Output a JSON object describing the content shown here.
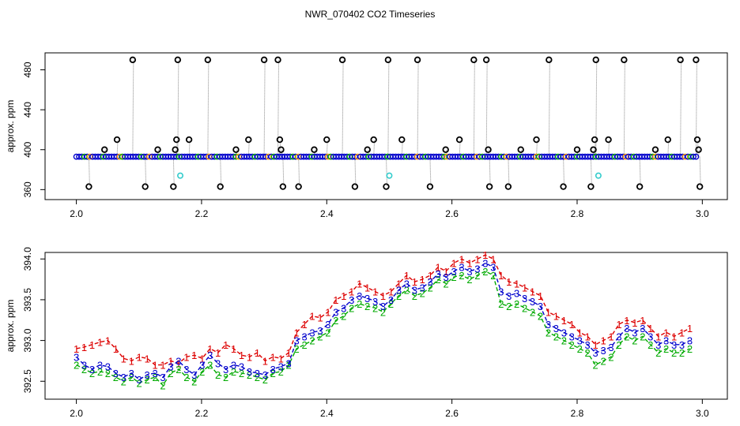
{
  "title": "NWR_070402  CO2 Timeseries",
  "colors": {
    "flag1": "#dd0000",
    "flag2": "#00aa00",
    "flag3": "#0000cc",
    "outlier": "#000000",
    "cyan": "#33cccc",
    "trace": "#888888"
  },
  "chart_data": [
    {
      "type": "scatter",
      "name": "top-panel",
      "xlabel": "",
      "ylabel": "approx. ppm",
      "xlim": [
        1.95,
        3.04
      ],
      "ylim": [
        350,
        497
      ],
      "xticks": [
        "2.0",
        "2.2",
        "2.4",
        "2.6",
        "2.8",
        "3.0"
      ],
      "xtick_values": [
        2.0,
        2.2,
        2.4,
        2.6,
        2.8,
        3.0
      ],
      "yticks": [
        "360",
        "400",
        "440",
        "480"
      ],
      "ytick_values": [
        360,
        400,
        440,
        480
      ],
      "baseline": {
        "x_start": 2.0,
        "x_end": 2.99,
        "y": 393
      },
      "outliers": [
        {
          "x": 2.02,
          "y": 363
        },
        {
          "x": 2.045,
          "y": 400
        },
        {
          "x": 2.065,
          "y": 410
        },
        {
          "x": 2.09,
          "y": 490
        },
        {
          "x": 2.11,
          "y": 363
        },
        {
          "x": 2.13,
          "y": 400
        },
        {
          "x": 2.155,
          "y": 363
        },
        {
          "x": 2.158,
          "y": 400
        },
        {
          "x": 2.16,
          "y": 410
        },
        {
          "x": 2.162,
          "y": 490
        },
        {
          "x": 2.18,
          "y": 410
        },
        {
          "x": 2.21,
          "y": 490
        },
        {
          "x": 2.23,
          "y": 363
        },
        {
          "x": 2.255,
          "y": 400
        },
        {
          "x": 2.275,
          "y": 410
        },
        {
          "x": 2.3,
          "y": 490
        },
        {
          "x": 2.322,
          "y": 490
        },
        {
          "x": 2.325,
          "y": 410
        },
        {
          "x": 2.327,
          "y": 400
        },
        {
          "x": 2.33,
          "y": 363
        },
        {
          "x": 2.355,
          "y": 363
        },
        {
          "x": 2.38,
          "y": 400
        },
        {
          "x": 2.4,
          "y": 410
        },
        {
          "x": 2.425,
          "y": 490
        },
        {
          "x": 2.445,
          "y": 363
        },
        {
          "x": 2.465,
          "y": 400
        },
        {
          "x": 2.475,
          "y": 410
        },
        {
          "x": 2.495,
          "y": 363
        },
        {
          "x": 2.498,
          "y": 490
        },
        {
          "x": 2.52,
          "y": 410
        },
        {
          "x": 2.545,
          "y": 490
        },
        {
          "x": 2.565,
          "y": 363
        },
        {
          "x": 2.59,
          "y": 400
        },
        {
          "x": 2.612,
          "y": 410
        },
        {
          "x": 2.635,
          "y": 490
        },
        {
          "x": 2.655,
          "y": 490
        },
        {
          "x": 2.658,
          "y": 400
        },
        {
          "x": 2.66,
          "y": 363
        },
        {
          "x": 2.69,
          "y": 363
        },
        {
          "x": 2.71,
          "y": 400
        },
        {
          "x": 2.735,
          "y": 410
        },
        {
          "x": 2.755,
          "y": 490
        },
        {
          "x": 2.778,
          "y": 363
        },
        {
          "x": 2.8,
          "y": 400
        },
        {
          "x": 2.822,
          "y": 363
        },
        {
          "x": 2.826,
          "y": 400
        },
        {
          "x": 2.828,
          "y": 410
        },
        {
          "x": 2.83,
          "y": 490
        },
        {
          "x": 2.85,
          "y": 410
        },
        {
          "x": 2.875,
          "y": 490
        },
        {
          "x": 2.9,
          "y": 363
        },
        {
          "x": 2.925,
          "y": 400
        },
        {
          "x": 2.945,
          "y": 410
        },
        {
          "x": 2.965,
          "y": 490
        },
        {
          "x": 2.99,
          "y": 490
        },
        {
          "x": 2.992,
          "y": 410
        },
        {
          "x": 2.994,
          "y": 400
        },
        {
          "x": 2.996,
          "y": 363
        }
      ],
      "cyan_points": [
        {
          "x": 2.166,
          "y": 374
        },
        {
          "x": 2.5,
          "y": 374
        },
        {
          "x": 2.834,
          "y": 374
        }
      ]
    },
    {
      "type": "line",
      "name": "bottom-panel",
      "xlabel": "",
      "ylabel": "approx. ppm",
      "xlim": [
        1.95,
        3.04
      ],
      "ylim": [
        392.28,
        394.08
      ],
      "xticks": [
        "2.0",
        "2.2",
        "2.4",
        "2.6",
        "2.8",
        "3.0"
      ],
      "xtick_values": [
        2.0,
        2.2,
        2.4,
        2.6,
        2.8,
        3.0
      ],
      "yticks": [
        "392.5",
        "393.0",
        "393.5",
        "394.0"
      ],
      "ytick_values": [
        392.5,
        393.0,
        393.5,
        394.0
      ],
      "series": [
        {
          "label": "1",
          "x_start": 2.0,
          "x_end": 2.98,
          "values": [
            392.9,
            392.92,
            392.95,
            392.98,
            393.0,
            392.9,
            392.78,
            392.75,
            392.8,
            392.78,
            392.7,
            392.7,
            392.75,
            392.72,
            392.8,
            392.82,
            392.78,
            392.9,
            392.85,
            392.95,
            392.9,
            392.82,
            392.8,
            392.85,
            392.75,
            392.8,
            392.78,
            392.85,
            393.1,
            393.2,
            393.3,
            393.28,
            393.35,
            393.5,
            393.55,
            393.6,
            393.7,
            393.65,
            393.6,
            393.55,
            393.6,
            393.7,
            393.8,
            393.72,
            393.75,
            393.8,
            393.9,
            393.85,
            393.95,
            394.0,
            393.95,
            394.0,
            394.05,
            394.0,
            393.8,
            393.72,
            393.7,
            393.65,
            393.6,
            393.55,
            393.35,
            393.3,
            393.25,
            393.2,
            393.1,
            393.05,
            392.95,
            393.0,
            393.05,
            393.2,
            393.25,
            393.22,
            393.25,
            393.15,
            393.05,
            393.1,
            393.05,
            393.1,
            393.15
          ]
        },
        {
          "label": "2",
          "x_start": 2.0,
          "x_end": 2.98,
          "values": [
            392.7,
            392.65,
            392.6,
            392.62,
            392.6,
            392.55,
            392.5,
            392.55,
            392.48,
            392.52,
            392.55,
            392.45,
            392.6,
            392.65,
            392.55,
            392.5,
            392.62,
            392.7,
            392.58,
            392.55,
            392.62,
            392.6,
            392.58,
            392.55,
            392.52,
            392.6,
            392.62,
            392.7,
            392.9,
            392.95,
            393.0,
            393.05,
            393.1,
            393.25,
            393.3,
            393.4,
            393.45,
            393.42,
            393.4,
            393.35,
            393.45,
            393.55,
            393.62,
            393.55,
            393.58,
            393.65,
            393.75,
            393.7,
            393.78,
            393.8,
            393.75,
            393.8,
            393.85,
            393.8,
            393.45,
            393.42,
            393.45,
            393.4,
            393.35,
            393.3,
            393.1,
            393.05,
            393.0,
            392.95,
            392.9,
            392.85,
            392.7,
            392.75,
            392.8,
            392.95,
            393.05,
            393.0,
            393.05,
            392.95,
            392.85,
            392.9,
            392.85,
            392.85,
            392.9
          ]
        },
        {
          "label": "3",
          "x_start": 2.0,
          "x_end": 2.98,
          "values": [
            392.8,
            392.7,
            392.65,
            392.7,
            392.68,
            392.6,
            392.55,
            392.6,
            392.52,
            392.58,
            392.6,
            392.55,
            392.68,
            392.75,
            392.65,
            392.58,
            392.7,
            392.82,
            392.72,
            392.65,
            392.7,
            392.68,
            392.62,
            392.6,
            392.58,
            392.65,
            392.68,
            392.72,
            393.0,
            393.05,
            393.1,
            393.12,
            393.2,
            393.35,
            393.4,
            393.5,
            393.55,
            393.52,
            393.48,
            393.42,
            393.5,
            393.62,
            393.7,
            393.62,
            393.65,
            393.72,
            393.82,
            393.78,
            393.85,
            393.9,
            393.85,
            393.88,
            393.95,
            393.9,
            393.6,
            393.55,
            393.58,
            393.52,
            393.48,
            393.42,
            393.2,
            393.15,
            393.1,
            393.05,
            393.0,
            392.95,
            392.85,
            392.88,
            392.92,
            393.05,
            393.15,
            393.1,
            393.15,
            393.05,
            392.95,
            393.0,
            392.95,
            392.95,
            393.0
          ]
        }
      ]
    }
  ]
}
